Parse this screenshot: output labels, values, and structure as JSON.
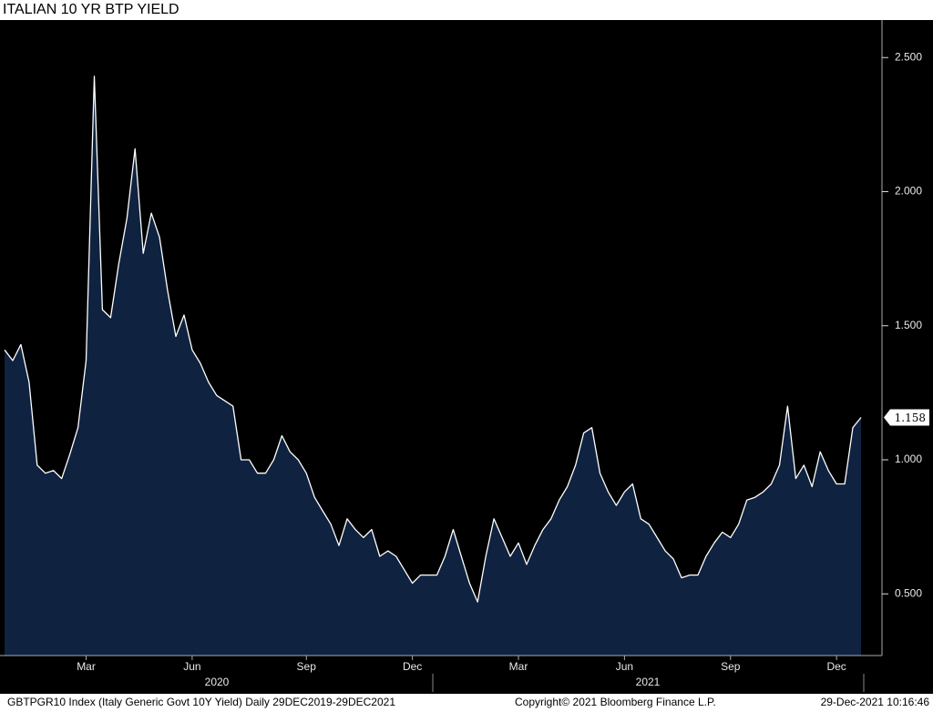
{
  "chart_data": {
    "type": "area",
    "title": "ITALIAN 10 YR BTP YIELD",
    "categories": [
      null,
      null,
      null,
      null,
      null,
      null,
      null,
      null,
      null,
      null,
      "Mar",
      null,
      null,
      null,
      null,
      null,
      null,
      null,
      null,
      null,
      null,
      null,
      null,
      "Jun",
      null,
      null,
      null,
      null,
      null,
      null,
      null,
      null,
      null,
      null,
      null,
      null,
      null,
      "Sep",
      null,
      null,
      null,
      null,
      null,
      null,
      null,
      null,
      null,
      null,
      null,
      null,
      "Dec",
      null,
      null,
      null,
      null,
      null,
      null,
      null,
      null,
      null,
      null,
      null,
      null,
      "Mar",
      null,
      null,
      null,
      null,
      null,
      null,
      null,
      null,
      null,
      null,
      null,
      null,
      "Jun",
      null,
      null,
      null,
      null,
      null,
      null,
      null,
      null,
      null,
      null,
      null,
      null,
      "Sep",
      null,
      null,
      null,
      null,
      null,
      null,
      null,
      null,
      null,
      null,
      null,
      null,
      "Dec",
      null,
      null,
      null
    ],
    "year_labels": [
      "2020",
      "2021"
    ],
    "series": [
      {
        "name": "GBTPGR10 Index",
        "color": "#ffffff",
        "fill": "#0f2240",
        "values": [
          1.41,
          1.37,
          1.43,
          1.29,
          0.98,
          0.95,
          0.96,
          0.93,
          1.02,
          1.12,
          1.37,
          2.43,
          1.56,
          1.53,
          1.73,
          1.9,
          2.16,
          1.77,
          1.92,
          1.83,
          1.63,
          1.46,
          1.54,
          1.41,
          1.36,
          1.29,
          1.24,
          1.22,
          1.2,
          1.0,
          1.0,
          0.95,
          0.95,
          1.0,
          1.09,
          1.03,
          1.0,
          0.95,
          0.86,
          0.81,
          0.76,
          0.68,
          0.78,
          0.74,
          0.71,
          0.74,
          0.64,
          0.66,
          0.64,
          0.59,
          0.54,
          0.57,
          0.57,
          0.57,
          0.64,
          0.74,
          0.64,
          0.54,
          0.47,
          0.64,
          0.78,
          0.71,
          0.64,
          0.69,
          0.61,
          0.68,
          0.74,
          0.78,
          0.85,
          0.9,
          0.98,
          1.1,
          1.12,
          0.95,
          0.88,
          0.83,
          0.88,
          0.91,
          0.78,
          0.76,
          0.71,
          0.66,
          0.63,
          0.56,
          0.57,
          0.57,
          0.64,
          0.69,
          0.73,
          0.71,
          0.76,
          0.85,
          0.86,
          0.88,
          0.91,
          0.98,
          1.2,
          0.93,
          0.98,
          0.9,
          1.03,
          0.96,
          0.91,
          0.91,
          1.12,
          1.158
        ]
      }
    ],
    "ylim": [
      0.27,
      2.64
    ],
    "yticks": [
      {
        "value": 0.5,
        "label": "0.500"
      },
      {
        "value": 1.0,
        "label": "1.000"
      },
      {
        "value": 1.5,
        "label": "1.500"
      },
      {
        "value": 2.0,
        "label": "2.000"
      },
      {
        "value": 2.5,
        "label": "2.500"
      }
    ],
    "grid": false,
    "footer": [
      "GBTPGR10 Index (Italy Generic Govt 10Y Yield)  Daily 29DEC2019-29DEC2021",
      "Copyright© 2021 Bloomberg Finance L.P.",
      "29-Dec-2021 10:16:46"
    ]
  }
}
